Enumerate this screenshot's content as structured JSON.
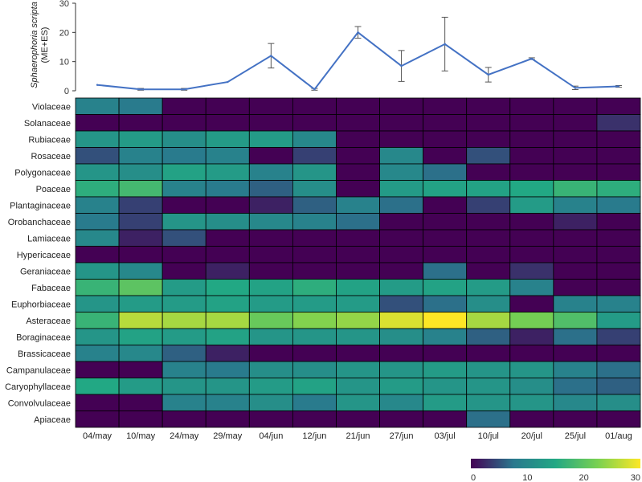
{
  "chart_data": [
    {
      "type": "line",
      "title": "",
      "ylabel": "Sphaerophoria scripta",
      "ylabel_sub": "(ME+ES)",
      "ylim": [
        0,
        30
      ],
      "yticks": [
        0,
        10,
        20,
        30
      ],
      "line_color": "#4472c4",
      "categories": [
        "04/may",
        "10/may",
        "24/may",
        "29/may",
        "04/jun",
        "12/jun",
        "21/jun",
        "27/jun",
        "03/jul",
        "10/jul",
        "20/jul",
        "25/jul",
        "01/aug"
      ],
      "values": [
        2,
        0.5,
        0.5,
        3,
        12,
        0.5,
        20,
        8.5,
        16,
        5.5,
        11,
        1,
        1.5
      ],
      "error": [
        0,
        0.3,
        0.3,
        0,
        4.2,
        0.3,
        2,
        5.3,
        9.2,
        2.5,
        0.3,
        0.6,
        0.3
      ]
    },
    {
      "type": "heatmap",
      "columns": [
        "04/may",
        "10/may",
        "24/may",
        "29/may",
        "04/jun",
        "12/jun",
        "21/jun",
        "27/jun",
        "03/jul",
        "10/jul",
        "20/jul",
        "25/jul",
        "01/aug"
      ],
      "rows": [
        "Violaceae",
        "Solanaceae",
        "Rubiaceae",
        "Rosaceae",
        "Polygonaceae",
        "Poaceae",
        "Plantaginaceae",
        "Orobanchaceae",
        "Lamiaceae",
        "Hypericaceae",
        "Geraniaceae",
        "Fabaceae",
        "Euphorbiaceae",
        "Asteraceae",
        "Boraginaceae",
        "Brassicaceae",
        "Campanulaceae",
        "Caryophyllaceae",
        "Convolvulaceae",
        "Apiaceae"
      ],
      "values": [
        [
          9,
          8,
          0,
          0,
          0,
          0,
          0,
          0,
          0,
          0,
          0,
          0,
          0
        ],
        [
          0,
          0,
          0,
          0,
          0,
          0,
          0,
          0,
          0,
          0,
          0,
          0,
          3
        ],
        [
          12,
          13,
          11,
          13,
          13,
          10,
          0,
          0,
          0,
          0,
          0,
          0,
          0
        ],
        [
          5,
          9,
          8,
          9,
          0,
          4,
          0,
          10,
          0,
          5,
          0,
          0,
          0
        ],
        [
          12,
          11,
          14,
          13,
          9,
          12,
          0,
          10,
          7,
          0,
          0,
          0,
          0
        ],
        [
          16,
          18,
          9,
          8,
          6,
          11,
          0,
          13,
          14,
          14,
          15,
          17,
          16
        ],
        [
          9,
          4,
          0,
          0,
          2,
          6,
          9,
          7,
          0,
          4,
          13,
          9,
          8
        ],
        [
          8,
          4,
          12,
          11,
          10,
          9,
          7,
          0,
          0,
          0,
          0,
          2,
          0
        ],
        [
          10,
          2,
          5,
          0,
          0,
          0,
          0,
          0,
          0,
          0,
          0,
          0,
          0
        ],
        [
          0,
          0,
          0,
          0,
          0,
          0,
          0,
          0,
          0,
          0,
          0,
          0,
          0
        ],
        [
          12,
          10,
          0,
          2,
          0,
          0,
          0,
          0,
          7,
          0,
          3,
          0,
          0
        ],
        [
          17,
          20,
          13,
          15,
          14,
          16,
          14,
          13,
          14,
          13,
          9,
          0,
          0
        ],
        [
          12,
          13,
          13,
          14,
          13,
          13,
          13,
          5,
          7,
          11,
          0,
          9,
          9
        ],
        [
          17,
          26,
          25,
          25,
          21,
          23,
          24,
          28,
          31,
          25,
          22,
          19,
          13
        ],
        [
          12,
          14,
          13,
          14,
          12,
          12,
          12,
          11,
          9,
          6,
          2,
          7,
          4
        ],
        [
          9,
          10,
          6,
          2,
          0,
          0,
          0,
          0,
          0,
          0,
          0,
          0,
          0
        ],
        [
          0,
          0,
          9,
          8,
          11,
          11,
          12,
          12,
          13,
          12,
          12,
          9,
          7
        ],
        [
          15,
          13,
          12,
          12,
          13,
          14,
          12,
          13,
          12,
          12,
          11,
          7,
          6
        ],
        [
          0,
          0,
          9,
          9,
          11,
          8,
          12,
          10,
          13,
          12,
          12,
          10,
          11
        ],
        [
          0,
          0,
          0,
          0,
          0,
          0,
          0,
          0,
          0,
          7,
          0,
          0,
          0
        ]
      ]
    },
    {
      "type": "colorbar",
      "min": 0,
      "max": 30,
      "ticks": [
        0,
        10,
        20,
        30
      ],
      "colors": [
        "#440154",
        "#2a788e",
        "#22a884",
        "#7ad151",
        "#fde725"
      ]
    }
  ]
}
